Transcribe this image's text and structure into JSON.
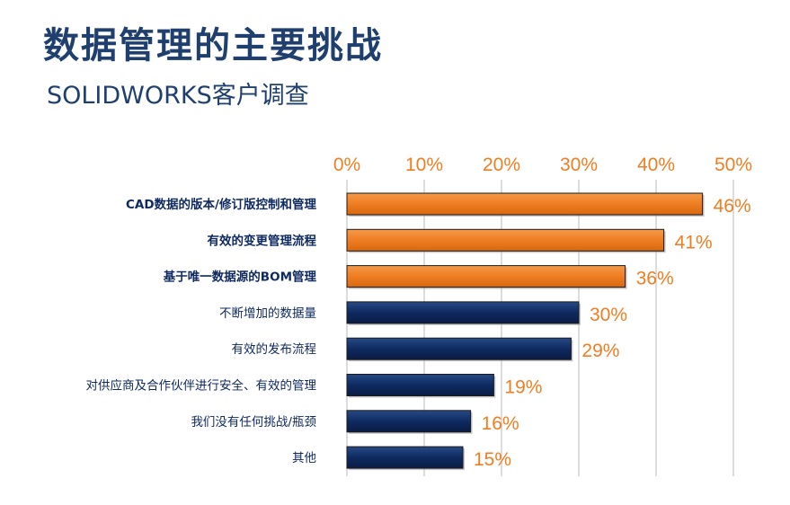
{
  "title": "数据管理的主要挑战",
  "subtitle": "SOLIDWORKS客户调查",
  "colors": {
    "orange": "#ef7d22",
    "navy": "#0f2a60",
    "title": "#1f3f6e",
    "tick": "#ef7d22",
    "grid": "#b8b8b8"
  },
  "chart_data": {
    "type": "bar",
    "orientation": "horizontal",
    "categories": [
      "CAD数据的版本/修订版控制和管理",
      "有效的变更管理流程",
      "基于唯一数据源的BOM管理",
      "不断增加的数据量",
      "有效的发布流程",
      "对供应商及合作伙伴进行安全、有效的管理",
      "我们没有任何挑战/瓶颈",
      "其他"
    ],
    "values": [
      46,
      41,
      36,
      30,
      29,
      19,
      16,
      15
    ],
    "value_labels": [
      "46%",
      "41%",
      "36%",
      "30%",
      "29%",
      "19%",
      "16%",
      "15%"
    ],
    "highlighted": [
      true,
      true,
      true,
      false,
      false,
      false,
      false,
      false
    ],
    "bold_labels": [
      true,
      true,
      true,
      false,
      false,
      false,
      false,
      false
    ],
    "xlim": [
      0,
      50
    ],
    "x_ticks": [
      0,
      10,
      20,
      30,
      40,
      50
    ],
    "x_tick_labels": [
      "0%",
      "10%",
      "20%",
      "30%",
      "40%",
      "50%"
    ],
    "axis_position": "top",
    "grid": true
  }
}
